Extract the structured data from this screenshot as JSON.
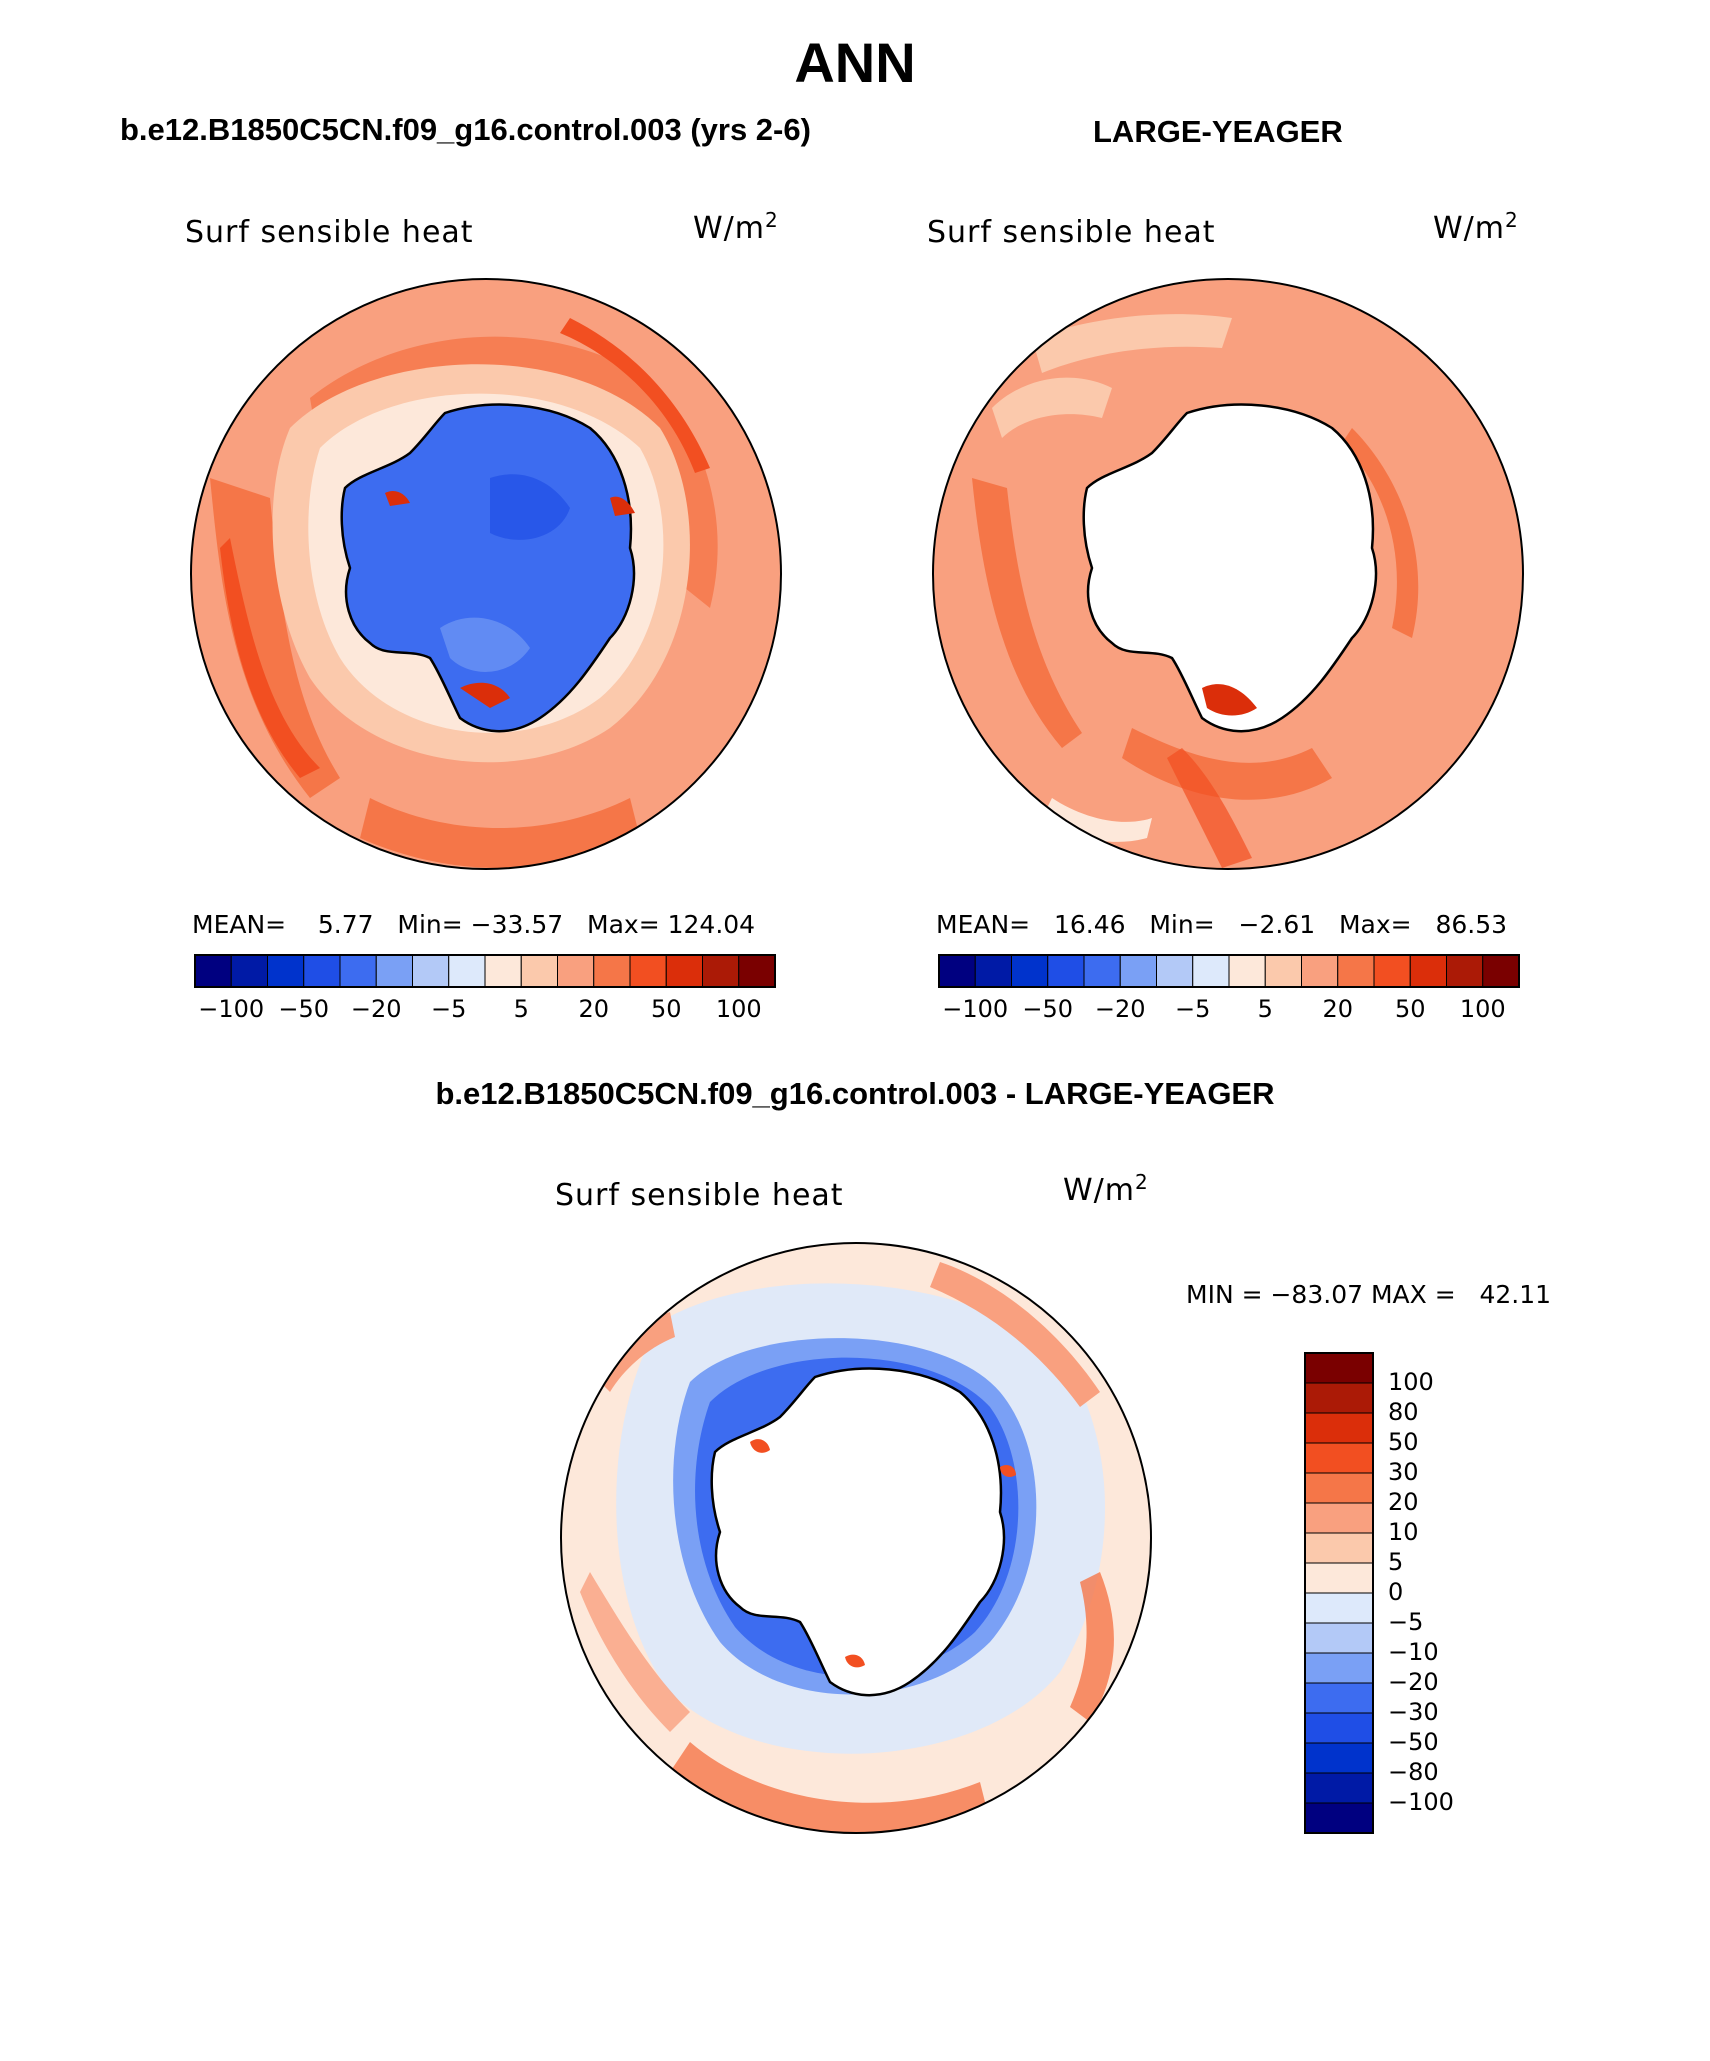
{
  "title": "ANN",
  "panels": [
    {
      "case_label": "b.e12.B1850C5CN.f09_g16.control.003 (yrs 2-6)",
      "variable": "Surf sensible heat",
      "units_base": "W/m",
      "units_exp": "2",
      "stats": "MEAN=    5.77   Min= −33.57   Max= 124.04",
      "colorbar_ticks": [
        "−100",
        "−50",
        "−20",
        "−5",
        "5",
        "20",
        "50",
        "100"
      ]
    },
    {
      "case_label": "LARGE-YEAGER",
      "variable": "Surf sensible heat",
      "units_base": "W/m",
      "units_exp": "2",
      "stats": "MEAN=   16.46   Min=   −2.61   Max=   86.53",
      "colorbar_ticks": [
        "−100",
        "−50",
        "−20",
        "−5",
        "5",
        "20",
        "50",
        "100"
      ]
    }
  ],
  "diff": {
    "case_label": "b.e12.B1850C5CN.f09_g16.control.003 - LARGE-YEAGER",
    "variable": "Surf sensible heat",
    "units_base": "W/m",
    "units_exp": "2",
    "stats": "MIN = −83.07 MAX =   42.11",
    "colorbar_labels": [
      "100",
      "80",
      "50",
      "30",
      "20",
      "10",
      "5",
      "0",
      "−5",
      "−10",
      "−20",
      "−30",
      "−50",
      "−80",
      "−100"
    ]
  },
  "colors": {
    "abs_scale": [
      "#000080",
      "#001aa6",
      "#0033cc",
      "#1f4ee6",
      "#3d6cf0",
      "#7aa0f5",
      "#b3c9f7",
      "#dde9fb",
      "#fde8da",
      "#fbc9ac",
      "#f9a07f",
      "#f57648",
      "#f24f21",
      "#db2e0a",
      "#ab1a06",
      "#7a0000"
    ],
    "diff_scale": [
      "#7a0000",
      "#ab1a06",
      "#db2e0a",
      "#f24f21",
      "#f57648",
      "#f9a07f",
      "#fbc9ac",
      "#fde8da",
      "#dde9fb",
      "#b3c9f7",
      "#7aa0f5",
      "#3d6cf0",
      "#1f4ee6",
      "#0033cc",
      "#001aa6",
      "#000080"
    ],
    "land": "#3d6cf0",
    "mask": "#ffffff"
  }
}
